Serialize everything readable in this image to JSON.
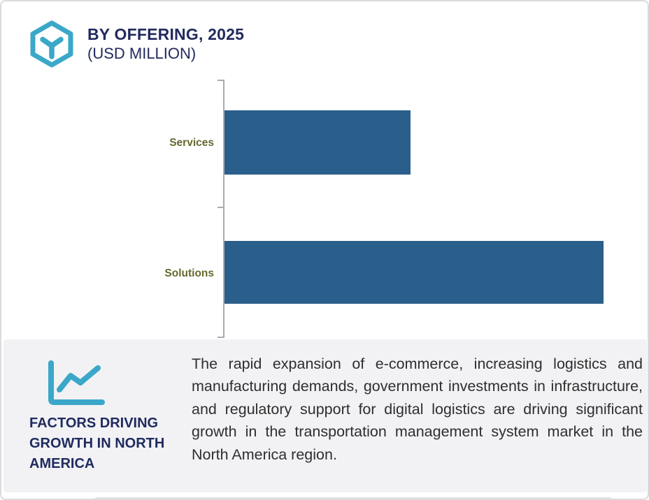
{
  "header": {
    "title": "BY OFFERING, 2025",
    "subtitle": "(USD MILLION)",
    "logo_icon": "hexagon-cube-icon"
  },
  "chart_data": {
    "type": "bar",
    "orientation": "horizontal",
    "title": "BY OFFERING, 2025 (USD MILLION)",
    "categories": [
      "Services",
      "Solutions"
    ],
    "values": [
      49,
      100
    ],
    "values_note": "no numeric axis or data labels shown; values are percent of longest bar estimated from bar lengths",
    "xlabel": "",
    "ylabel": "",
    "grid": false,
    "legend": false,
    "bar_color": "#2a5f8c",
    "category_label_color": "#66682f",
    "axis_color": "#ababab"
  },
  "factors": {
    "icon": "trend-line-chart-icon",
    "heading": "FACTORS DRIVING GROWTH IN NORTH AMERICA",
    "body": "The rapid expansion of e-commerce, increasing logistics and manufacturing demands, government investments in infrastructure, and regulatory support for digital logistics are driving significant growth in the transportation management system market in the North America region."
  },
  "colors": {
    "accent_teal": "#3ba7c9",
    "navy": "#222a5f",
    "bar_blue": "#2a5f8c",
    "olive_label": "#66682f",
    "panel_gray": "#f2f2f5",
    "border_gray": "#dbdbdb"
  }
}
